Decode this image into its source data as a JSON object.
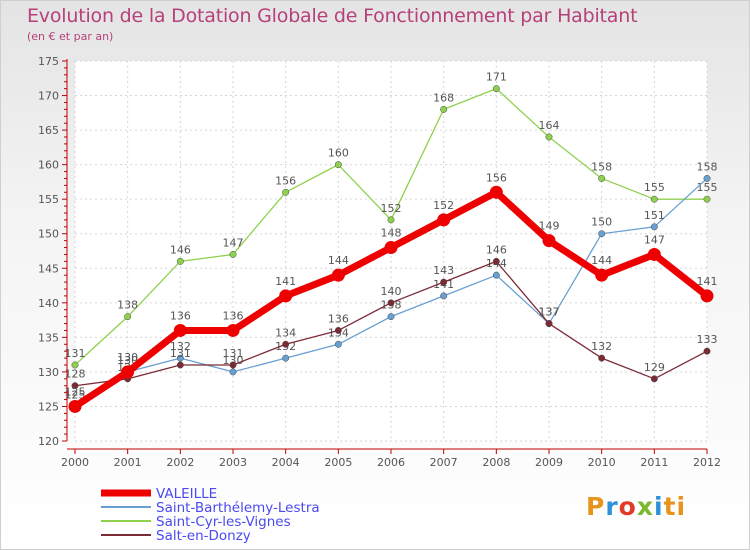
{
  "chart_data": {
    "type": "line",
    "title": "Evolution de la Dotation Globale de Fonctionnement par Habitant",
    "subtitle": "(en € et par an)",
    "x": [
      "2000",
      "2001",
      "2002",
      "2003",
      "2004",
      "2005",
      "2006",
      "2007",
      "2008",
      "2009",
      "2010",
      "2011",
      "2012"
    ],
    "ylim": [
      120,
      175
    ],
    "yticks": [
      "120",
      "125",
      "130",
      "135",
      "140",
      "145",
      "150",
      "155",
      "160",
      "165",
      "170",
      "175"
    ],
    "grid": true,
    "legend_placement": "bottom-left",
    "series": [
      {
        "name": "Saint-Cyr-les-Vignes",
        "color": "#8fd14f",
        "width": 1.3,
        "values": [
          131,
          138,
          146,
          147,
          156,
          160,
          152,
          168,
          171,
          164,
          158,
          155,
          155
        ],
        "labels": [
          "131",
          "138",
          "146",
          "147",
          "156",
          "160",
          "152",
          "168",
          "171",
          "164",
          "158",
          "155",
          "155"
        ]
      },
      {
        "name": "Saint-Barthélemy-Lestra",
        "color": "#6a9fd2",
        "width": 1.3,
        "values": [
          125,
          130,
          132,
          130,
          132,
          134,
          138,
          141,
          144,
          137,
          150,
          151,
          158
        ],
        "labels": [
          "125",
          "130",
          "132",
          "130",
          "132",
          "134",
          "138",
          "141",
          "144",
          "137",
          "150",
          "151",
          "158"
        ]
      },
      {
        "name": "Salt-en-Donzy",
        "color": "#7b2b36",
        "width": 1.3,
        "values": [
          128,
          129,
          131,
          131,
          134,
          136,
          140,
          143,
          146,
          137,
          132,
          129,
          133
        ],
        "labels": [
          "128",
          "129",
          "131",
          "131",
          "134",
          "136",
          "140",
          "143",
          "146",
          "137",
          "132",
          "129",
          "133"
        ]
      },
      {
        "name": "VALEILLE",
        "color": "#ee0000",
        "width": 7,
        "values": [
          125,
          130,
          136,
          136,
          141,
          144,
          148,
          152,
          156,
          149,
          144,
          147,
          141
        ],
        "labels": [
          "125",
          "130",
          "136",
          "136",
          "141",
          "144",
          "148",
          "152",
          "156",
          "149",
          "144",
          "147",
          "141"
        ]
      }
    ],
    "legend": [
      "VALEILLE",
      "Saint-Barthélemy-Lestra",
      "Saint-Cyr-les-Vignes",
      "Salt-en-Donzy"
    ],
    "legend_colors": {
      "VALEILLE": "#ee0000",
      "Saint-Barthélemy-Lestra": "#6a9fd2",
      "Saint-Cyr-les-Vignes": "#8fd14f",
      "Salt-en-Donzy": "#7b2b36"
    },
    "legend_text_color": "#4a4af0"
  },
  "brand": {
    "logo_letters": [
      "P",
      "r",
      "o",
      "x",
      "i",
      "ti"
    ]
  }
}
